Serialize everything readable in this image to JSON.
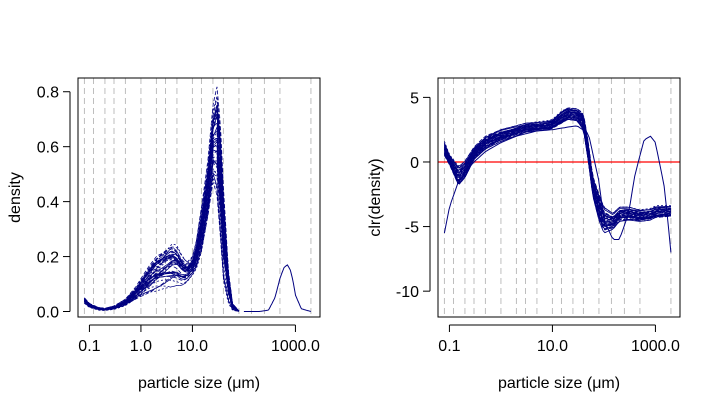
{
  "chart_data": [
    {
      "type": "line",
      "xscale": "log",
      "xlim": [
        0.06,
        3000
      ],
      "ylim": [
        -0.02,
        0.85
      ],
      "xlabel": "particle size (μm)",
      "ylabel": "density",
      "xticks": [
        {
          "value": 0.1,
          "label": "0.1"
        },
        {
          "value": 1,
          "label": "1.0"
        },
        {
          "value": 10,
          "label": "10.0"
        },
        {
          "value": 1000,
          "label": "1000.0"
        }
      ],
      "yticks": [
        {
          "value": 0.0,
          "label": "0.0"
        },
        {
          "value": 0.2,
          "label": "0.2"
        },
        {
          "value": 0.4,
          "label": "0.4"
        },
        {
          "value": 0.6,
          "label": "0.6"
        },
        {
          "value": 0.8,
          "label": "0.8"
        }
      ],
      "vgrid_x": [
        0.08,
        0.12,
        0.2,
        0.3,
        0.5,
        1,
        2,
        3,
        5,
        10,
        15,
        25,
        40,
        80,
        140,
        250,
        500,
        2000
      ],
      "line_color": "#000080",
      "series_count": 40,
      "envelope_x": [
        0.08,
        0.1,
        0.15,
        0.2,
        0.3,
        0.5,
        0.8,
        1,
        1.5,
        2,
        3,
        4,
        5,
        6,
        7,
        8,
        10,
        12,
        15,
        20,
        25,
        30,
        35,
        40,
        50,
        60,
        80
      ],
      "envelope_low": [
        0.03,
        0.015,
        0.005,
        0.004,
        0.008,
        0.02,
        0.04,
        0.05,
        0.065,
        0.075,
        0.085,
        0.09,
        0.095,
        0.095,
        0.1,
        0.11,
        0.13,
        0.15,
        0.2,
        0.32,
        0.45,
        0.4,
        0.25,
        0.1,
        0.03,
        0.005,
        0.0
      ],
      "envelope_high": [
        0.05,
        0.03,
        0.015,
        0.012,
        0.02,
        0.045,
        0.09,
        0.12,
        0.17,
        0.2,
        0.23,
        0.25,
        0.24,
        0.21,
        0.19,
        0.18,
        0.2,
        0.26,
        0.38,
        0.55,
        0.75,
        0.82,
        0.68,
        0.45,
        0.15,
        0.03,
        0.002
      ],
      "outlier_series": {
        "x": [
          100,
          200,
          300,
          400,
          500,
          600,
          700,
          800,
          900,
          1000,
          1300,
          2000
        ],
        "y": [
          0,
          0.0,
          0.005,
          0.05,
          0.12,
          0.16,
          0.17,
          0.15,
          0.11,
          0.06,
          0.01,
          0
        ]
      }
    },
    {
      "type": "line",
      "xscale": "log",
      "xlim": [
        0.06,
        3000
      ],
      "ylim": [
        -12,
        6.5
      ],
      "xlabel": "particle size (μm)",
      "ylabel": "clr(density)",
      "xticks": [
        {
          "value": 0.1,
          "label": "0.1"
        },
        {
          "value": 10,
          "label": "10.0"
        },
        {
          "value": 1000,
          "label": "1000.0"
        }
      ],
      "yticks": [
        {
          "value": 5,
          "label": "5"
        },
        {
          "value": 0,
          "label": "0"
        },
        {
          "value": -5,
          "label": "-5"
        },
        {
          "value": -10,
          "label": "-10"
        }
      ],
      "vgrid_x": [
        0.08,
        0.12,
        0.2,
        0.3,
        0.5,
        1,
        2,
        3,
        5,
        10,
        15,
        25,
        40,
        80,
        140,
        250,
        500,
        2000
      ],
      "hline": {
        "y": 0,
        "color": "#ff0000"
      },
      "line_color": "#000080",
      "series_count": 40,
      "envelope_x": [
        0.08,
        0.1,
        0.15,
        0.2,
        0.3,
        0.5,
        1,
        2,
        3,
        5,
        8,
        10,
        15,
        20,
        30,
        40,
        50,
        60,
        80,
        100,
        150,
        200,
        300,
        500,
        800,
        1000,
        2000
      ],
      "envelope_low": [
        0.5,
        -0.2,
        -1.8,
        -1.2,
        0.2,
        1.0,
        1.6,
        2.0,
        2.3,
        2.4,
        2.5,
        2.6,
        3.0,
        3.3,
        3.2,
        2.5,
        0.0,
        -2.5,
        -4.5,
        -5.5,
        -5.2,
        -4.6,
        -4.5,
        -4.6,
        -4.5,
        -4.3,
        -4.2
      ],
      "envelope_high": [
        1.6,
        0.6,
        -0.2,
        0.2,
        1.2,
        2.0,
        2.5,
        2.8,
        3.0,
        3.1,
        3.2,
        3.3,
        4.0,
        4.3,
        4.2,
        3.8,
        1.5,
        -1.0,
        -2.5,
        -3.5,
        -4.0,
        -3.5,
        -3.5,
        -3.7,
        -3.6,
        -3.4,
        -3.3
      ],
      "outlier_series": {
        "x": [
          0.08,
          0.1,
          0.15,
          0.2,
          0.3,
          0.5,
          1,
          2,
          5,
          10,
          20,
          30,
          50,
          80,
          100,
          150,
          200,
          300,
          400,
          600,
          800,
          1000,
          1500,
          2000
        ],
        "y": [
          -5.5,
          -3.5,
          -1.5,
          -0.8,
          0.0,
          0.8,
          1.5,
          2.0,
          2.4,
          2.5,
          2.7,
          2.8,
          2.2,
          -1.5,
          -4.5,
          -6.0,
          -6.0,
          -4.0,
          -1.0,
          1.7,
          2.0,
          1.5,
          -2.0,
          -7.0
        ]
      }
    }
  ]
}
